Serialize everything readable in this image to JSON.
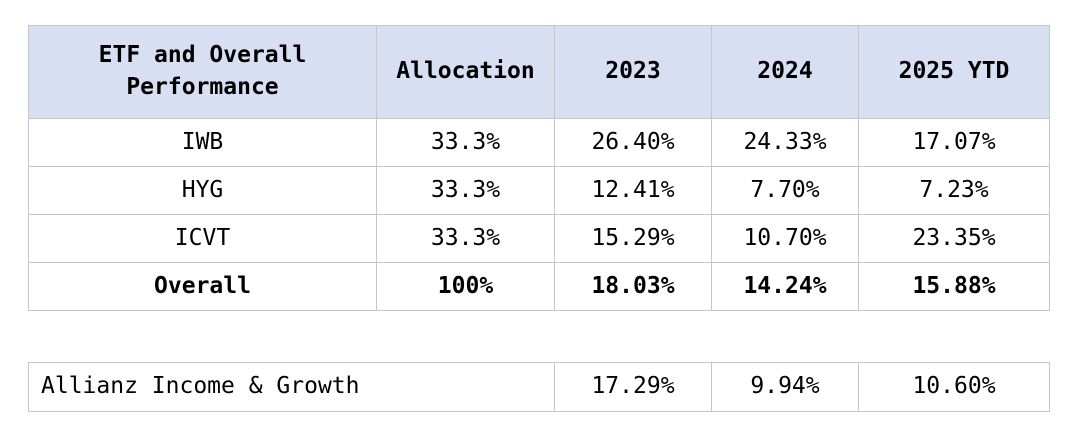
{
  "colors": {
    "header_bg": "#D9DFF2",
    "border": "#C7C7C7",
    "text": "#000000",
    "background": "#FFFFFF"
  },
  "main_table": {
    "columns": [
      "ETF and Overall Performance",
      "Allocation",
      "2023",
      "2024",
      "2025 YTD"
    ],
    "rows": [
      [
        "IWB",
        "33.3%",
        "26.40%",
        "24.33%",
        "17.07%"
      ],
      [
        "HYG",
        "33.3%",
        "12.41%",
        "7.70%",
        "7.23%"
      ],
      [
        "ICVT",
        "33.3%",
        "15.29%",
        "10.70%",
        "23.35%"
      ],
      [
        "Overall",
        "100%",
        "18.03%",
        "14.24%",
        "15.88%"
      ]
    ]
  },
  "benchmark_table": {
    "label": "Allianz Income & Growth",
    "values": [
      "17.29%",
      "9.94%",
      "10.60%"
    ]
  },
  "chart_data": {
    "type": "table",
    "title": "ETF and Overall Performance",
    "categories": [
      "2023",
      "2024",
      "2025 YTD"
    ],
    "series": [
      {
        "name": "IWB",
        "allocation": 33.3,
        "values": [
          26.4,
          24.33,
          17.07
        ]
      },
      {
        "name": "HYG",
        "allocation": 33.3,
        "values": [
          12.41,
          7.7,
          7.23
        ]
      },
      {
        "name": "ICVT",
        "allocation": 33.3,
        "values": [
          15.29,
          10.7,
          23.35
        ]
      },
      {
        "name": "Overall",
        "allocation": 100,
        "values": [
          18.03,
          14.24,
          15.88
        ]
      },
      {
        "name": "Allianz Income & Growth",
        "allocation": null,
        "values": [
          17.29,
          9.94,
          10.6
        ]
      }
    ]
  }
}
